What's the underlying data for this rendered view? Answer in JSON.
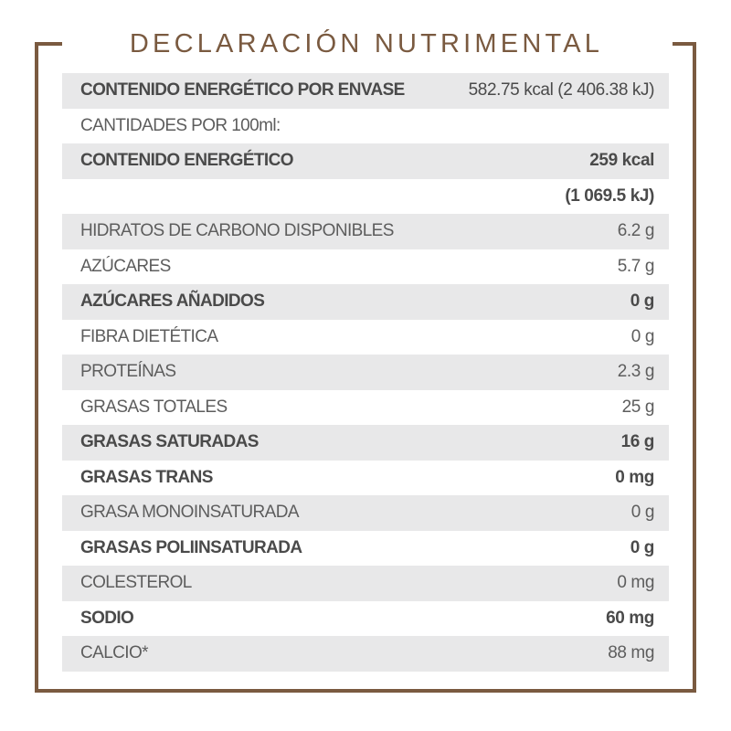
{
  "title": "DECLARACIÓN NUTRIMENTAL",
  "rows": [
    {
      "label": "CONTENIDO ENERGÉTICO POR ENVASE",
      "value": "582.75 kcal (2 406.38 kJ)"
    },
    {
      "label": "CANTIDADES POR 100ml:",
      "value": ""
    },
    {
      "label": "CONTENIDO ENERGÉTICO",
      "value": "259  kcal"
    },
    {
      "label": "",
      "value": "(1 069.5 kJ)"
    },
    {
      "label": "HIDRATOS DE CARBONO DISPONIBLES",
      "value": "6.2 g"
    },
    {
      "label": "AZÚCARES",
      "value": "5.7 g"
    },
    {
      "label": "AZÚCARES AÑADIDOS",
      "value": "0 g"
    },
    {
      "label": "FIBRA DIETÉTICA",
      "value": "0 g"
    },
    {
      "label": "PROTEÍNAS",
      "value": "2.3 g"
    },
    {
      "label": "GRASAS TOTALES",
      "value": "25 g"
    },
    {
      "label": "GRASAS SATURADAS",
      "value": "16 g"
    },
    {
      "label": "GRASAS TRANS",
      "value": "0 mg"
    },
    {
      "label": "GRASA MONOINSATURADA",
      "value": "0 g"
    },
    {
      "label": "GRASAS POLIINSATURADA",
      "value": "0 g"
    },
    {
      "label": "COLESTEROL",
      "value": "0 mg"
    },
    {
      "label": "SODIO",
      "value": "60 mg"
    },
    {
      "label": "CALCIO*",
      "value": "88 mg"
    }
  ]
}
